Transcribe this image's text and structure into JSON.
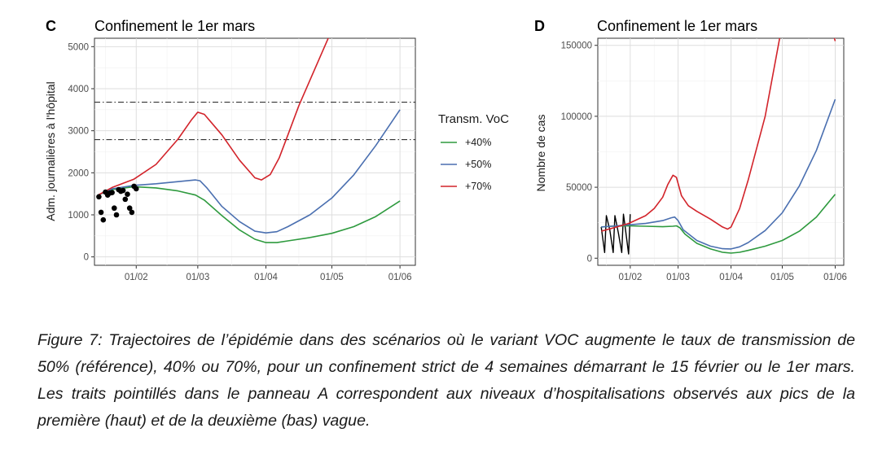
{
  "figure_caption": "Figure 7: Trajectoires de l’épidémie dans des scénarios où le variant VOC augmente le taux de transmission de 50% (référence), 40% ou 70%, pour un confinement strict de 4 semaines démarrant le 15 février ou le 1er mars. Les traits pointillés dans le panneau A correspondent aux niveaux d’hospitalisations observés aux pics de la première (haut) et de la deuxième (bas) vague.",
  "legend": {
    "title": "Transm. VoC",
    "entries": [
      {
        "label": "+40%",
        "color": "#2e9a3e"
      },
      {
        "label": "+50%",
        "color": "#4a6fb0"
      },
      {
        "label": "+70%",
        "color": "#d2232a"
      }
    ]
  },
  "chart_data": [
    {
      "panel": "C",
      "type": "line",
      "title": "Confinement le 1er mars",
      "xlabel": "",
      "ylabel": "Adm. journalières à l'hôpital",
      "x_tick_labels": [
        "01/02",
        "01/03",
        "01/04",
        "01/05",
        "01/06"
      ],
      "x_ticks_day": [
        31,
        59,
        90,
        120,
        151
      ],
      "xlim_day": [
        12,
        158
      ],
      "ylim": [
        -200,
        5200
      ],
      "y_ticks": [
        0,
        1000,
        2000,
        3000,
        4000,
        5000
      ],
      "grid": true,
      "reference_lines": [
        {
          "y": 3680,
          "style": "dash-dot"
        },
        {
          "y": 2790,
          "style": "dash-dot"
        }
      ],
      "series": [
        {
          "name": "+40%",
          "color": "#2e9a3e",
          "x_day": [
            14,
            20,
            30,
            40,
            50,
            58,
            62,
            70,
            78,
            85,
            90,
            95,
            100,
            110,
            120,
            130,
            140,
            151
          ],
          "values": [
            1480,
            1600,
            1670,
            1640,
            1570,
            1470,
            1350,
            980,
            640,
            420,
            340,
            340,
            380,
            460,
            560,
            720,
            960,
            1330
          ]
        },
        {
          "name": "+50%",
          "color": "#4a6fb0",
          "x_day": [
            14,
            20,
            30,
            40,
            50,
            58,
            60,
            63,
            70,
            78,
            85,
            90,
            95,
            100,
            110,
            120,
            130,
            140,
            151
          ],
          "values": [
            1480,
            1620,
            1700,
            1740,
            1790,
            1830,
            1810,
            1650,
            1200,
            840,
            610,
            570,
            600,
            720,
            1000,
            1400,
            1950,
            2650,
            3500
          ]
        },
        {
          "name": "+70%",
          "color": "#d2232a",
          "x_day": [
            14,
            20,
            30,
            40,
            50,
            56,
            59,
            62,
            70,
            78,
            85,
            88,
            92,
            96,
            100,
            105,
            110,
            115,
            120
          ],
          "values": [
            1480,
            1650,
            1850,
            2200,
            2800,
            3250,
            3440,
            3390,
            2900,
            2300,
            1880,
            1830,
            1960,
            2350,
            2900,
            3600,
            4200,
            4800,
            5400
          ]
        }
      ],
      "observed_points": {
        "color": "#000000",
        "x_day": [
          14,
          15,
          16,
          17,
          18,
          19,
          20,
          21,
          22,
          23,
          24,
          25,
          26,
          27,
          28,
          29,
          30,
          31
        ],
        "values": [
          1430,
          1060,
          880,
          1540,
          1470,
          1520,
          1530,
          1160,
          1000,
          1600,
          1560,
          1580,
          1370,
          1490,
          1160,
          1060,
          1680,
          1620
        ]
      }
    },
    {
      "panel": "D",
      "type": "line",
      "title": "Confinement le 1er mars",
      "xlabel": "",
      "ylabel": "Nombre de cas",
      "x_tick_labels": [
        "01/02",
        "01/03",
        "01/04",
        "01/05",
        "01/06"
      ],
      "x_ticks_day": [
        31,
        59,
        90,
        120,
        151
      ],
      "xlim_day": [
        12,
        156
      ],
      "ylim": [
        -5000,
        155000
      ],
      "y_ticks": [
        0,
        50000,
        100000,
        150000
      ],
      "y_tick_labels": [
        "0",
        "50000",
        "100000",
        "150000"
      ],
      "grid": true,
      "series": [
        {
          "name": "observed",
          "color": "#000000",
          "x_day": [
            14,
            16,
            17,
            19,
            21,
            22,
            24,
            26,
            27,
            28,
            30,
            31
          ],
          "values": [
            22000,
            4000,
            30000,
            20000,
            4000,
            30000,
            18000,
            4000,
            31000,
            22000,
            3000,
            31000
          ]
        },
        {
          "name": "+40%",
          "color": "#2e9a3e",
          "x_day": [
            14,
            20,
            30,
            40,
            50,
            56,
            58,
            60,
            63,
            70,
            78,
            85,
            90,
            95,
            100,
            110,
            120,
            130,
            140,
            151
          ],
          "values": [
            22000,
            22500,
            22800,
            22500,
            22200,
            22500,
            22800,
            21500,
            17000,
            10500,
            6500,
            4200,
            3600,
            4200,
            5500,
            8500,
            12500,
            19000,
            29000,
            45000
          ]
        },
        {
          "name": "+50%",
          "color": "#4a6fb0",
          "x_day": [
            14,
            20,
            30,
            40,
            50,
            55,
            57,
            59,
            62,
            70,
            78,
            85,
            90,
            95,
            100,
            110,
            120,
            130,
            140,
            151
          ],
          "values": [
            22000,
            22500,
            23500,
            24500,
            26500,
            28500,
            29000,
            26500,
            20000,
            12500,
            8500,
            6700,
            6500,
            8000,
            11000,
            19500,
            32000,
            51000,
            76000,
            112000
          ]
        },
        {
          "name": "+70%",
          "color": "#d2232a",
          "x_day": [
            14,
            20,
            30,
            40,
            45,
            50,
            53,
            56,
            58,
            61,
            65,
            70,
            78,
            85,
            88,
            90,
            95,
            100,
            110,
            120,
            130,
            140,
            151
          ],
          "values": [
            19000,
            21000,
            24500,
            30000,
            35000,
            43000,
            52000,
            58500,
            57000,
            44000,
            37000,
            33000,
            27500,
            22000,
            20500,
            22000,
            35000,
            55000,
            100000,
            165000,
            240000,
            200000,
            153000
          ]
        }
      ]
    }
  ]
}
